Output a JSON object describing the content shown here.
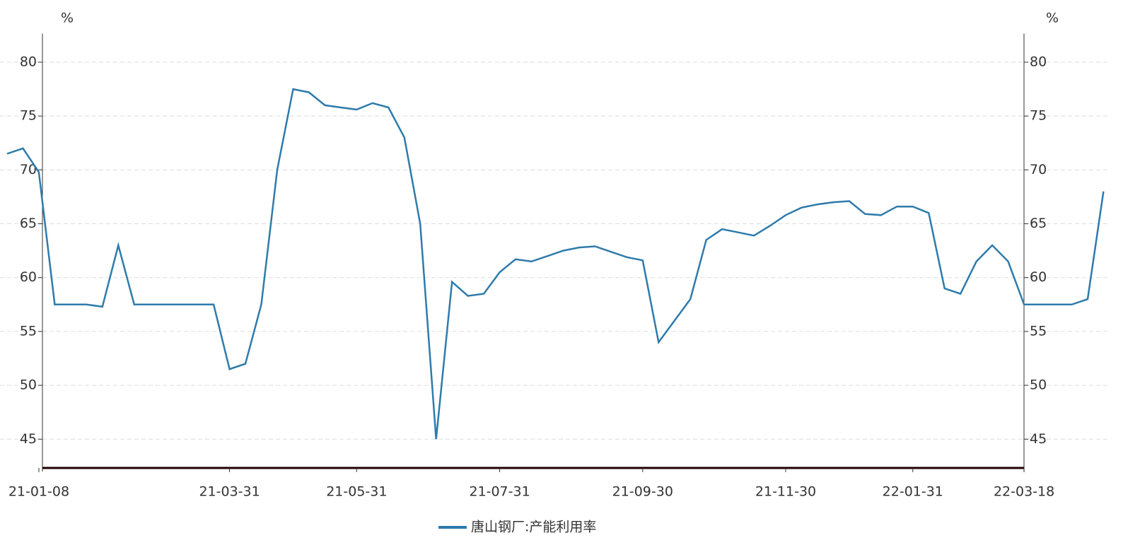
{
  "chart_data": {
    "type": "line",
    "y_unit": "%",
    "y2_unit": "%",
    "categories": [
      null,
      null,
      "21-01-08",
      null,
      null,
      null,
      null,
      null,
      null,
      null,
      null,
      null,
      null,
      null,
      "21-03-31",
      null,
      null,
      null,
      null,
      null,
      null,
      null,
      "21-05-31",
      null,
      null,
      null,
      null,
      null,
      null,
      null,
      null,
      "21-07-31",
      null,
      null,
      null,
      null,
      null,
      null,
      null,
      null,
      "21-09-30",
      null,
      null,
      null,
      null,
      null,
      null,
      null,
      null,
      "21-11-30",
      null,
      null,
      null,
      null,
      null,
      null,
      null,
      "22-01-31",
      null,
      null,
      null,
      null,
      null,
      null,
      "22-03-18",
      null,
      null,
      null,
      null,
      null
    ],
    "series": [
      {
        "name": "唐山钢厂:产能利用率",
        "color": "#2e7bab",
        "values": [
          71.5,
          72,
          69.8,
          57.5,
          57.5,
          57.5,
          57.3,
          63,
          57.5,
          57.5,
          57.5,
          57.5,
          57.5,
          57.5,
          51.5,
          52,
          57.5,
          70,
          77.5,
          77.2,
          76,
          75.8,
          75.6,
          76.2,
          75.8,
          73,
          65,
          45,
          59.6,
          58.3,
          58.5,
          60.5,
          61.7,
          61.5,
          62,
          62.5,
          62.8,
          62.9,
          62.4,
          61.9,
          61.6,
          54,
          56,
          58,
          63.5,
          64.5,
          64.2,
          63.9,
          64.8,
          65.8,
          66.5,
          66.8,
          67,
          67.1,
          65.9,
          65.8,
          66.6,
          66.6,
          66,
          59,
          58.5,
          61.5,
          63,
          61.5,
          57.5,
          57.5,
          57.5,
          57.5,
          58,
          68
        ]
      }
    ],
    "ylim": [
      42,
      82
    ],
    "yticks": [
      45,
      50,
      55,
      60,
      65,
      70,
      75,
      80
    ],
    "y2lim": [
      42,
      82
    ],
    "y2ticks": [
      45,
      50,
      55,
      60,
      65,
      70,
      75,
      80
    ],
    "grid": true
  }
}
